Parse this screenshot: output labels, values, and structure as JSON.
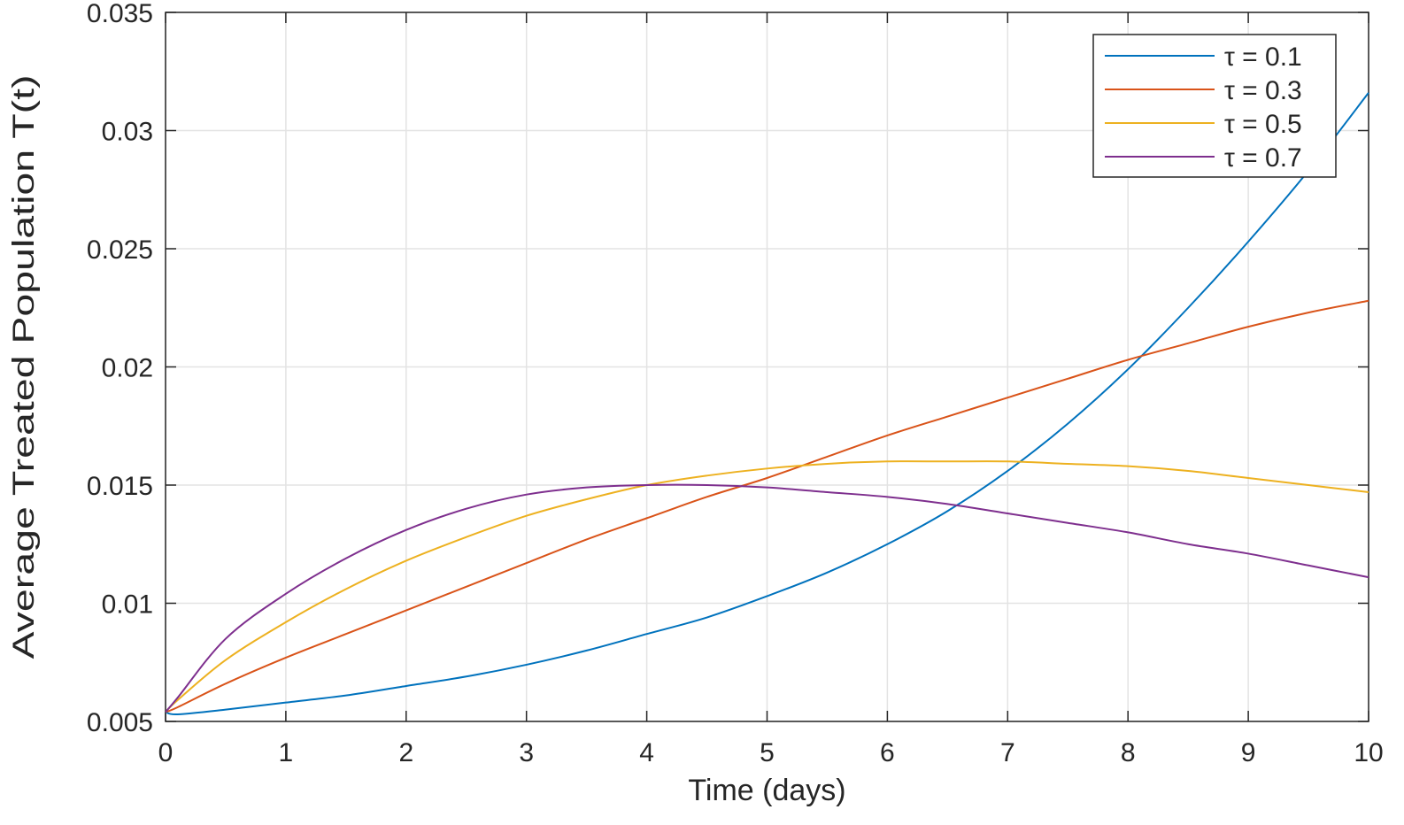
{
  "chart_data": {
    "type": "line",
    "title": "",
    "xlabel": "Time (days)",
    "ylabel": "Average Treated Population T(t)",
    "xlim": [
      0,
      10
    ],
    "ylim": [
      0.005,
      0.035
    ],
    "xticks": [
      0,
      1,
      2,
      3,
      4,
      5,
      6,
      7,
      8,
      9,
      10
    ],
    "xtick_labels": [
      "0",
      "1",
      "2",
      "3",
      "4",
      "5",
      "6",
      "7",
      "8",
      "9",
      "10"
    ],
    "yticks": [
      0.005,
      0.01,
      0.015,
      0.02,
      0.025,
      0.03,
      0.035
    ],
    "ytick_labels": [
      "0.005",
      "0.01",
      "0.015",
      "0.02",
      "0.025",
      "0.03",
      "0.035"
    ],
    "grid": true,
    "legend_position": "top-right",
    "x": [
      0,
      0.1,
      0.5,
      1,
      1.5,
      2,
      2.5,
      3,
      3.5,
      4,
      4.5,
      5,
      5.5,
      6,
      6.5,
      7,
      7.5,
      8,
      8.5,
      9,
      9.5,
      10
    ],
    "series": [
      {
        "name": "τ = 0.1",
        "color": "#0072BD",
        "values": [
          0.0054,
          0.0053,
          0.0055,
          0.0058,
          0.0061,
          0.0065,
          0.0069,
          0.0074,
          0.008,
          0.0087,
          0.0094,
          0.0103,
          0.0113,
          0.0125,
          0.0139,
          0.0156,
          0.0176,
          0.0199,
          0.0225,
          0.0253,
          0.0283,
          0.0316
        ]
      },
      {
        "name": "τ = 0.3",
        "color": "#D95319",
        "values": [
          0.0054,
          0.0056,
          0.0066,
          0.0077,
          0.0087,
          0.0097,
          0.0107,
          0.0117,
          0.0127,
          0.0136,
          0.0145,
          0.0153,
          0.0162,
          0.0171,
          0.0179,
          0.0187,
          0.0195,
          0.0203,
          0.021,
          0.0217,
          0.0223,
          0.0228
        ]
      },
      {
        "name": "τ = 0.5",
        "color": "#EDB120",
        "values": [
          0.0054,
          0.0059,
          0.0076,
          0.0092,
          0.0106,
          0.0118,
          0.0128,
          0.0137,
          0.0144,
          0.015,
          0.0154,
          0.0157,
          0.0159,
          0.016,
          0.016,
          0.016,
          0.0159,
          0.0158,
          0.0156,
          0.0153,
          0.015,
          0.0147
        ]
      },
      {
        "name": "τ = 0.7",
        "color": "#7E2F8E",
        "values": [
          0.0054,
          0.006,
          0.0085,
          0.0104,
          0.0119,
          0.0131,
          0.014,
          0.0146,
          0.0149,
          0.015,
          0.015,
          0.0149,
          0.0147,
          0.0145,
          0.0142,
          0.0138,
          0.0134,
          0.013,
          0.0125,
          0.0121,
          0.0116,
          0.0111
        ]
      }
    ]
  }
}
